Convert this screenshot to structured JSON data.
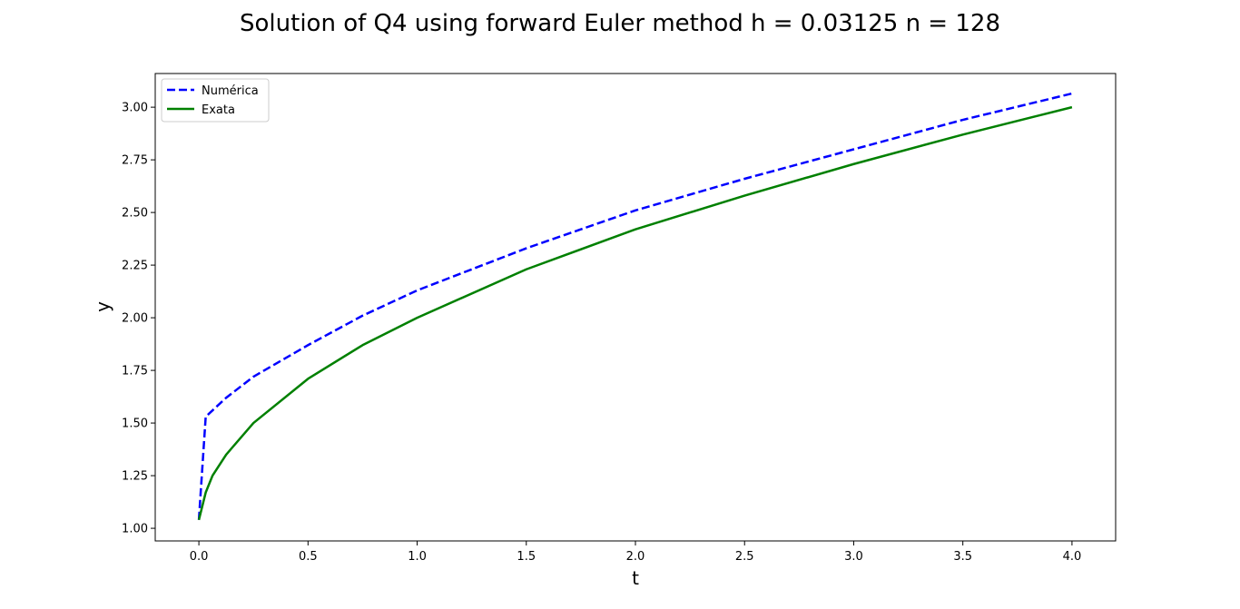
{
  "chart_data": {
    "type": "line",
    "title": "Solution of Q4 using forward Euler method h = 0.03125  n = 128",
    "xlabel": "t",
    "ylabel": "y",
    "xlim": [
      -0.2,
      4.2
    ],
    "ylim": [
      0.94,
      3.16
    ],
    "x_ticks": [
      0.0,
      0.5,
      1.0,
      1.5,
      2.0,
      2.5,
      3.0,
      3.5,
      4.0
    ],
    "x_tick_labels": [
      "0.0",
      "0.5",
      "1.0",
      "1.5",
      "2.0",
      "2.5",
      "3.0",
      "3.5",
      "4.0"
    ],
    "y_ticks": [
      1.0,
      1.25,
      1.5,
      1.75,
      2.0,
      2.25,
      2.5,
      2.75,
      3.0
    ],
    "y_tick_labels": [
      "1.00",
      "1.25",
      "1.50",
      "1.75",
      "2.00",
      "2.25",
      "2.50",
      "2.75",
      "3.00"
    ],
    "grid": false,
    "legend_position": "top-left",
    "series": [
      {
        "name": "Numérica",
        "color": "#0000ff",
        "style": "dashed",
        "x": [
          0.0,
          0.03125,
          0.125,
          0.25,
          0.5,
          0.75,
          1.0,
          1.5,
          2.0,
          2.5,
          3.0,
          3.5,
          4.0
        ],
        "y": [
          1.04,
          1.53,
          1.62,
          1.72,
          1.87,
          2.01,
          2.13,
          2.33,
          2.51,
          2.66,
          2.8,
          2.94,
          3.065
        ]
      },
      {
        "name": "Exata",
        "color": "#008000",
        "style": "solid",
        "x": [
          0.0,
          0.03125,
          0.0625,
          0.125,
          0.25,
          0.5,
          0.75,
          1.0,
          1.5,
          2.0,
          2.5,
          3.0,
          3.5,
          4.0
        ],
        "y": [
          1.04,
          1.17,
          1.25,
          1.35,
          1.5,
          1.71,
          1.87,
          2.0,
          2.23,
          2.42,
          2.58,
          2.73,
          2.87,
          3.0
        ]
      }
    ]
  }
}
